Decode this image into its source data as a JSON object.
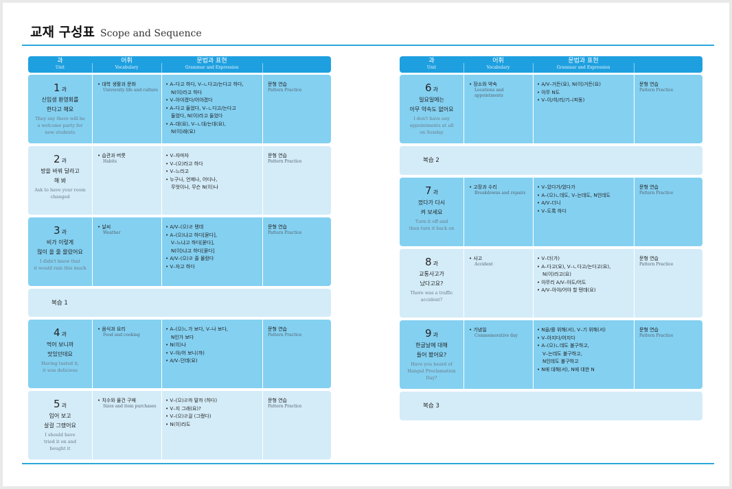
{
  "page": {
    "title_ko": "교재 구성표",
    "title_en": "Scope and Sequence"
  },
  "header": {
    "unit_ko": "과",
    "unit_en": "Unit",
    "vocab_ko": "어휘",
    "vocab_en": "Vocabulary",
    "grammar_ko": "문법과 표현",
    "grammar_en": "Grammar and Expression"
  },
  "pattern": {
    "ko": "문형 연습",
    "en": "Pattern Practice"
  },
  "lesson_suffix": "과",
  "colors": {
    "accent": "#1ea0e0",
    "row_dark": "#84d0f1",
    "row_light": "#d4ecf8"
  },
  "left_rows": [
    {
      "type": "lesson",
      "shade": "dark",
      "num": "1",
      "title_ko": [
        "신입생 환영회를",
        "한다고 해요"
      ],
      "title_en": [
        "They say there will be",
        "a welcome party for",
        "new students"
      ],
      "vocab_ko": "대학 생활과 문화",
      "vocab_en": "University life and culture",
      "grammar": [
        "A–다고 하다, V–ㄴ다고/는다고 하다,",
        "N(이)라고 하다",
        "V–아야겠다/어야겠다",
        "A–다고 들었다, V–ㄴ다고/는다고",
        "들었다, N(이)라고 들었다",
        "A–대(요), V–ㄴ대/는대(요),",
        "N(이)래(요)"
      ]
    },
    {
      "type": "lesson",
      "shade": "light",
      "num": "2",
      "title_ko": [
        "방을 바꿔 달라고",
        "해 봐"
      ],
      "title_en": [
        "Ask to have your room",
        "changed"
      ],
      "vocab_ko": "습관과 버릇",
      "vocab_en": "Habits",
      "grammar": [
        "V–자마자",
        "V–(으)라고 하다",
        "V–느라고",
        "누구나, 언제나, 어디나,",
        "무엇이나, 무슨 N(이)나"
      ]
    },
    {
      "type": "lesson",
      "shade": "dark",
      "num": "3",
      "title_ko": [
        "비가 이렇게",
        "많이 올 줄 몰랐어요"
      ],
      "title_en": [
        "I didn't know that",
        "it would rain this much"
      ],
      "vocab_ko": "날씨",
      "vocab_en": "Weather",
      "grammar": [
        "A/V–(으)ㄹ 텐데",
        "A–(으)냐고 하다[묻다],",
        "V–느냐고 하다[묻다],",
        "N(이)냐고 하다[묻다]",
        "A/V–(으)ㄹ 줄 몰랐다",
        "V–자고 하다"
      ]
    },
    {
      "type": "review",
      "label": "복습 1"
    },
    {
      "type": "lesson",
      "shade": "dark",
      "num": "4",
      "title_ko": [
        "먹어 보니까",
        "맛있던데요"
      ],
      "title_en": [
        "Having tasted it,",
        "it was delicious"
      ],
      "vocab_ko": "음식과 요리",
      "vocab_en": "Food and cooking",
      "grammar": [
        "A–(으)ㄴ가 보다, V–나 보다,",
        "N인가 보다",
        "N(이)나",
        "V–아/어 보니(까)",
        "A/V–던데(요)"
      ]
    },
    {
      "type": "lesson",
      "shade": "light",
      "num": "5",
      "title_ko": [
        "입어 보고",
        "살걸 그랬어요"
      ],
      "title_en": [
        "I should have",
        "tried it on and",
        "bought it"
      ],
      "vocab_ko": "치수와 물건 구매",
      "vocab_en": "Sizes and item purchases",
      "grammar": [
        "V–(으)ㄹ까 말까 (하다)",
        "V–지 그래(요)?",
        "V–(으)ㄹ걸 (그랬다)",
        "N(이)라도"
      ]
    }
  ],
  "right_rows": [
    {
      "type": "lesson",
      "shade": "dark",
      "num": "6",
      "title_ko": [
        "일요일에는",
        "아무 약속도 없어요"
      ],
      "title_en": [
        "I don't have any",
        "appointments at all",
        "on Sunday"
      ],
      "vocab_ko": "장소와 약속",
      "vocab_en": "Locations and appointments",
      "grammar": [
        "A/V–거든(요), N(이)거든(요)",
        "아무 N도",
        "V–이/히/리/기–(피동)"
      ]
    },
    {
      "type": "review",
      "label": "복습 2"
    },
    {
      "type": "lesson",
      "shade": "dark",
      "num": "7",
      "title_ko": [
        "껐다가 다시",
        "켜 보세요"
      ],
      "title_en": [
        "Turn it off and",
        "then turn it back on"
      ],
      "vocab_ko": "고장과 수리",
      "vocab_en": "Breakdowns and repairs",
      "grammar": [
        "V–았다가/었다가",
        "A–(으)ㄴ데도, V–는데도, N인데도",
        "A/V–더니",
        "V–도록 하다"
      ]
    },
    {
      "type": "lesson",
      "shade": "light",
      "num": "8",
      "title_ko": [
        "교통사고가",
        "났다고요?"
      ],
      "title_en": [
        "There was a traffic",
        "accident?"
      ],
      "vocab_ko": "사고",
      "vocab_en": "Accident",
      "grammar": [
        "V–더(가)",
        "A–다고(요), V–ㄴ다고/는다고(요),",
        "N(이)라고(요)",
        "아무리 A/V–아도/어도",
        "A/V–아야/어야 할 텐데(요)"
      ]
    },
    {
      "type": "lesson",
      "shade": "dark",
      "num": "9",
      "title_ko": [
        "한글날에 대해",
        "들어 봤어요?"
      ],
      "title_en": [
        "Have you heard of",
        "Hangul Proclamation",
        "Day?"
      ],
      "vocab_ko": "기념일",
      "vocab_en": "Commemorative day",
      "grammar": [
        "N을/를 위해(서), V–기 위해(서)",
        "V–아지다/어지다",
        "A–(으)ㄴ데도 불구하고,",
        "V–는데도 불구하고,",
        "N인데도 불구하고",
        "N에 대해(서), N에 대한 N"
      ]
    },
    {
      "type": "review",
      "label": "복습 3"
    }
  ]
}
